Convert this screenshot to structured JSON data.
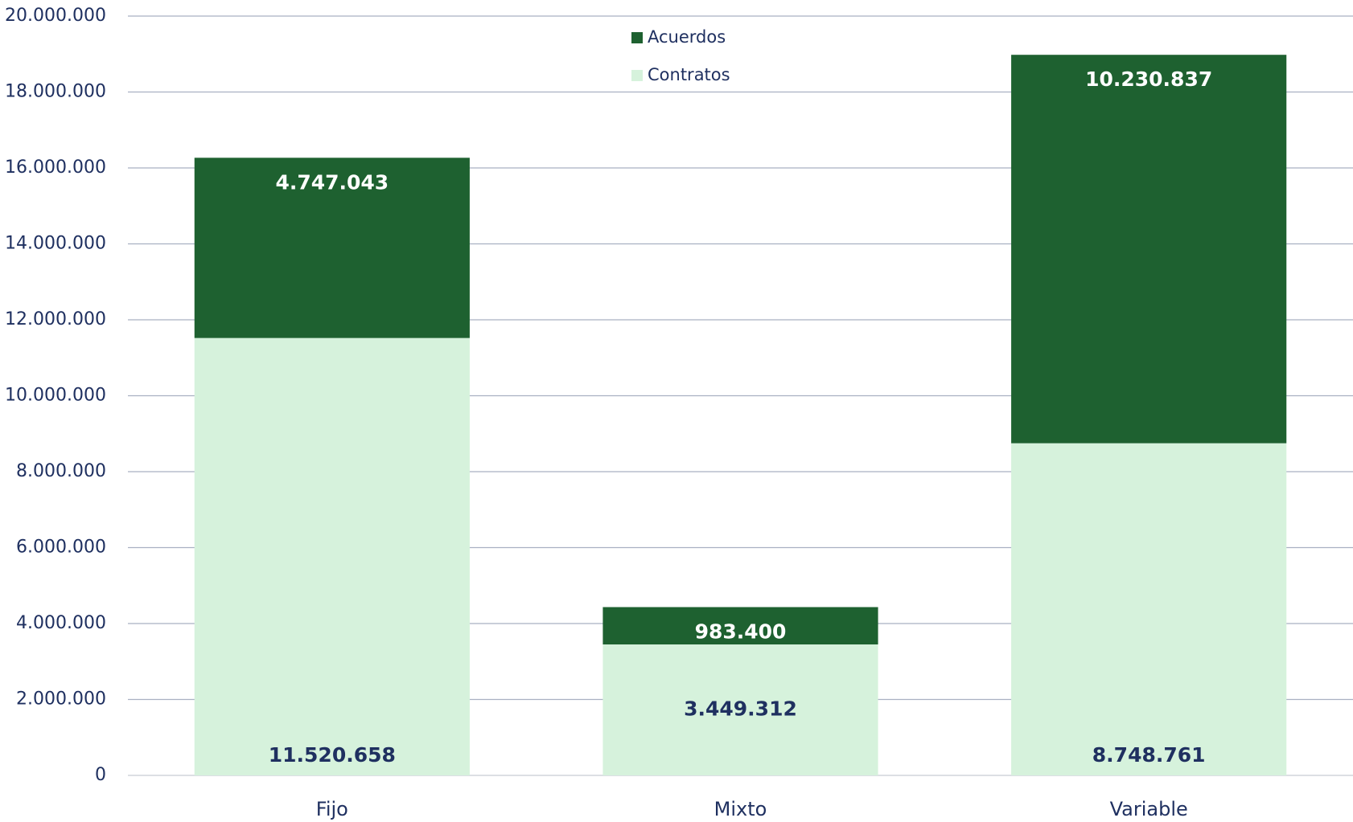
{
  "chart_data": {
    "type": "stacked_bar",
    "categories": [
      "Fijo",
      "Mixto",
      "Variable"
    ],
    "series": [
      {
        "name": "Contratos",
        "color": "#d6f2dc",
        "label_color": "#1f3060",
        "values": [
          11520658,
          3449312,
          8748761
        ],
        "value_labels": [
          "11.520.658",
          "3.449.312",
          "8.748.761"
        ]
      },
      {
        "name": "Acuerdos",
        "color": "#1e6130",
        "label_color": "#ffffff",
        "values": [
          4747043,
          983400,
          10230837
        ],
        "value_labels": [
          "4.747.043",
          "983.400",
          "10.230.837"
        ]
      }
    ],
    "ylim": [
      0,
      20000000
    ],
    "yticks": [
      {
        "value": 0,
        "label": "0"
      },
      {
        "value": 2000000,
        "label": "2.000.000"
      },
      {
        "value": 4000000,
        "label": "4.000.000"
      },
      {
        "value": 6000000,
        "label": "6.000.000"
      },
      {
        "value": 8000000,
        "label": "8.000.000"
      },
      {
        "value": 10000000,
        "label": "10.000.000"
      },
      {
        "value": 12000000,
        "label": "12.000.000"
      },
      {
        "value": 14000000,
        "label": "14.000.000"
      },
      {
        "value": 16000000,
        "label": "16.000.000"
      },
      {
        "value": 18000000,
        "label": "18.000.000"
      },
      {
        "value": 20000000,
        "label": "20.000.000"
      }
    ],
    "grid": true
  }
}
